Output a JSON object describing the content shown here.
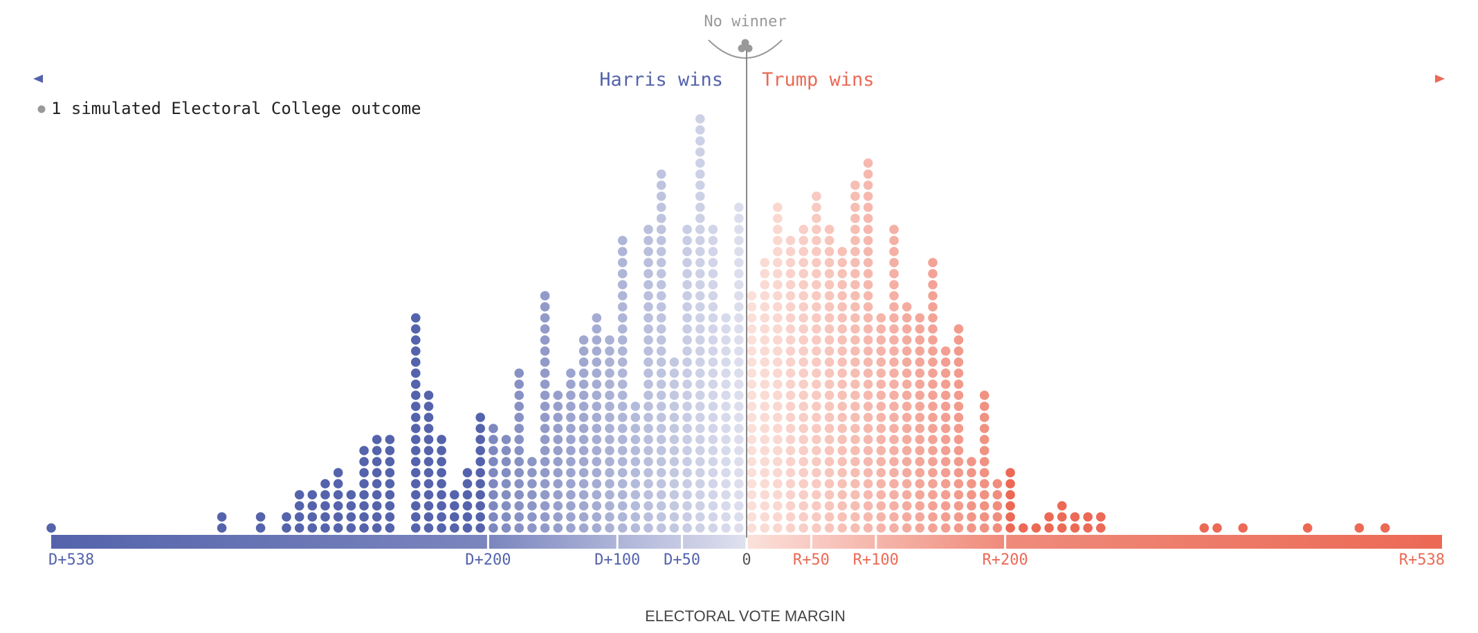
{
  "chart_data": {
    "type": "dot-histogram",
    "title": "",
    "no_winner_label": "No winner",
    "no_winner_count": 3,
    "harris_label": "Harris wins",
    "trump_label": "Trump wins",
    "legend_label": "1 simulated Electoral College outcome",
    "xlabel": "ELECTORAL VOTE MARGIN",
    "xlim": [
      -538,
      538
    ],
    "bin_width": 10,
    "ticks": [
      {
        "value": -538,
        "label": "D+538"
      },
      {
        "value": -200,
        "label": "D+200"
      },
      {
        "value": -100,
        "label": "D+100"
      },
      {
        "value": -50,
        "label": "D+50"
      },
      {
        "value": 0,
        "label": "0"
      },
      {
        "value": 50,
        "label": "R+50"
      },
      {
        "value": 100,
        "label": "R+100"
      },
      {
        "value": 200,
        "label": "R+200"
      },
      {
        "value": 538,
        "label": "R+538"
      }
    ],
    "bins": [
      {
        "margin": -538,
        "count": 1
      },
      {
        "margin": -406,
        "count": 2
      },
      {
        "margin": -376,
        "count": 2
      },
      {
        "margin": -356,
        "count": 2
      },
      {
        "margin": -346,
        "count": 4
      },
      {
        "margin": -336,
        "count": 4
      },
      {
        "margin": -326,
        "count": 5
      },
      {
        "margin": -316,
        "count": 6
      },
      {
        "margin": -306,
        "count": 4
      },
      {
        "margin": -296,
        "count": 8
      },
      {
        "margin": -286,
        "count": 9
      },
      {
        "margin": -276,
        "count": 9
      },
      {
        "margin": -256,
        "count": 20
      },
      {
        "margin": -246,
        "count": 13
      },
      {
        "margin": -236,
        "count": 9
      },
      {
        "margin": -226,
        "count": 4
      },
      {
        "margin": -216,
        "count": 6
      },
      {
        "margin": -206,
        "count": 11
      },
      {
        "margin": -196,
        "count": 10
      },
      {
        "margin": -186,
        "count": 9
      },
      {
        "margin": -176,
        "count": 15
      },
      {
        "margin": -166,
        "count": 7
      },
      {
        "margin": -156,
        "count": 22
      },
      {
        "margin": -146,
        "count": 13
      },
      {
        "margin": -136,
        "count": 15
      },
      {
        "margin": -126,
        "count": 18
      },
      {
        "margin": -116,
        "count": 20
      },
      {
        "margin": -106,
        "count": 18
      },
      {
        "margin": -96,
        "count": 27
      },
      {
        "margin": -86,
        "count": 12
      },
      {
        "margin": -76,
        "count": 28
      },
      {
        "margin": -66,
        "count": 33
      },
      {
        "margin": -56,
        "count": 16
      },
      {
        "margin": -46,
        "count": 28
      },
      {
        "margin": -36,
        "count": 38
      },
      {
        "margin": -26,
        "count": 28
      },
      {
        "margin": -16,
        "count": 20
      },
      {
        "margin": -6,
        "count": 30
      },
      {
        "margin": 4,
        "count": 22
      },
      {
        "margin": 14,
        "count": 25
      },
      {
        "margin": 24,
        "count": 30
      },
      {
        "margin": 34,
        "count": 27
      },
      {
        "margin": 44,
        "count": 28
      },
      {
        "margin": 54,
        "count": 31
      },
      {
        "margin": 64,
        "count": 28
      },
      {
        "margin": 74,
        "count": 26
      },
      {
        "margin": 84,
        "count": 32
      },
      {
        "margin": 94,
        "count": 34
      },
      {
        "margin": 104,
        "count": 20
      },
      {
        "margin": 114,
        "count": 28
      },
      {
        "margin": 124,
        "count": 21
      },
      {
        "margin": 134,
        "count": 20
      },
      {
        "margin": 144,
        "count": 25
      },
      {
        "margin": 154,
        "count": 17
      },
      {
        "margin": 164,
        "count": 19
      },
      {
        "margin": 174,
        "count": 7
      },
      {
        "margin": 184,
        "count": 13
      },
      {
        "margin": 194,
        "count": 5
      },
      {
        "margin": 204,
        "count": 6
      },
      {
        "margin": 214,
        "count": 1
      },
      {
        "margin": 224,
        "count": 1
      },
      {
        "margin": 234,
        "count": 2
      },
      {
        "margin": 244,
        "count": 3
      },
      {
        "margin": 254,
        "count": 2
      },
      {
        "margin": 264,
        "count": 2
      },
      {
        "margin": 274,
        "count": 2
      },
      {
        "margin": 354,
        "count": 1
      },
      {
        "margin": 364,
        "count": 1
      },
      {
        "margin": 384,
        "count": 1
      },
      {
        "margin": 434,
        "count": 1
      },
      {
        "margin": 474,
        "count": 1
      },
      {
        "margin": 494,
        "count": 1
      }
    ],
    "colors": {
      "dem_strong": "#5463ab",
      "dem_light": "#dfe1ef",
      "rep_light": "#fbe1db",
      "rep_strong": "#eb6955",
      "center_line": "#888888",
      "no_winner": "#999999",
      "axis_text": "#555555"
    }
  }
}
